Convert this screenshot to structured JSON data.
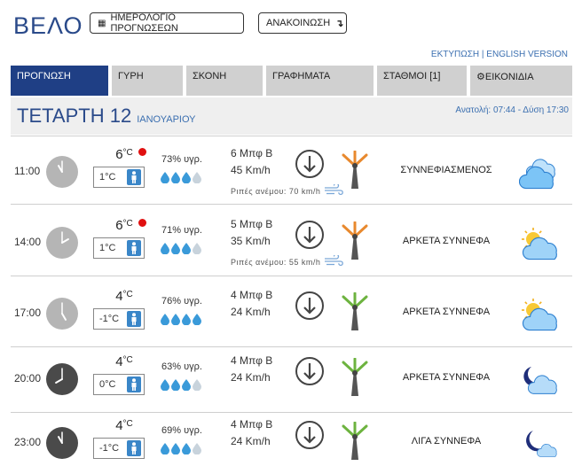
{
  "header": {
    "title": "ΒΕΛΟ",
    "calendar_button": "ΗΜΕΡΟΛΟΓΙΟ ΠΡΟΓΝΩΣΕΩΝ",
    "announcement_button": "ΑΝΑΚΟΙΝΩΣΗ",
    "print_link": "ΕΚΤΥΠΩΣΗ",
    "separator": " | ",
    "english_link": "ENGLISH VERSION"
  },
  "tabs": [
    {
      "label": "ΠΡΟΓΝΩΣΗ"
    },
    {
      "label": "ΓΥΡΗ"
    },
    {
      "label": "ΣΚΟΝΗ"
    },
    {
      "label": "ΓΡΑΦΗΜΑΤΑ"
    },
    {
      "label": "ΣΤΑΘΜΟΙ  [1]"
    },
    {
      "label": "ΕΙΚΟΝΙΔΙΑ"
    }
  ],
  "date": {
    "day": "ΤΕΤΑΡΤΗ 12",
    "month": "ΙΑΝΟΥΑΡΙΟΥ",
    "sun": "Ανατολή: 07:44 - Δύση 17:30"
  },
  "forecast": [
    {
      "time": "11:00",
      "clock": "light",
      "temp": "6",
      "unit": "°C",
      "warning": true,
      "feels": "1°C",
      "humidity": "73% υγρ.",
      "drops_full": 3,
      "wind_bf": "6 Μπφ Β",
      "wind_kmh": "45 Km/h",
      "gust": "Ριπές ανέμου: 70 km/h",
      "turbine": "orange",
      "description": "ΣΥΝΝΕΦΙΑΣΜΕΝΟΣ",
      "icon": "cloudy-icon"
    },
    {
      "time": "14:00",
      "clock": "light",
      "temp": "6",
      "unit": "°C",
      "warning": true,
      "feels": "1°C",
      "humidity": "71% υγρ.",
      "drops_full": 3,
      "wind_bf": "5 Μπφ Β",
      "wind_kmh": "35 Km/h",
      "gust": "Ριπές ανέμου: 55 km/h",
      "turbine": "orange",
      "description": "ΑΡΚΕΤΑ ΣΥΝΝΕΦΑ",
      "icon": "partly-cloudy-day-icon"
    },
    {
      "time": "17:00",
      "clock": "light",
      "temp": "4",
      "unit": "°C",
      "warning": false,
      "feels": "-1°C",
      "humidity": "76% υγρ.",
      "drops_full": 4,
      "wind_bf": "4 Μπφ Β",
      "wind_kmh": "24 Km/h",
      "gust": "",
      "turbine": "green",
      "description": "ΑΡΚΕΤΑ ΣΥΝΝΕΦΑ",
      "icon": "partly-cloudy-day-icon"
    },
    {
      "time": "20:00",
      "clock": "dark",
      "temp": "4",
      "unit": "°C",
      "warning": false,
      "feels": "0°C",
      "humidity": "63% υγρ.",
      "drops_full": 3,
      "wind_bf": "4 Μπφ Β",
      "wind_kmh": "24 Km/h",
      "gust": "",
      "turbine": "green",
      "description": "ΑΡΚΕΤΑ ΣΥΝΝΕΦΑ",
      "icon": "partly-cloudy-night-icon"
    },
    {
      "time": "23:00",
      "clock": "dark",
      "temp": "4",
      "unit": "°C",
      "warning": false,
      "feels": "-1°C",
      "humidity": "69% υγρ.",
      "drops_full": 3,
      "wind_bf": "4 Μπφ Β",
      "wind_kmh": "24 Km/h",
      "gust": "",
      "turbine": "green",
      "description": "ΛΙΓΑ ΣΥΝΝΕΦΑ",
      "icon": "few-clouds-night-icon"
    }
  ],
  "colors": {
    "primary": "#1f3f85",
    "link": "#3b6fb0",
    "tab_bg": "#d0d0d0",
    "warning": "#e01010",
    "drop": "#3a9ad9",
    "turbine_orange": "#e8892e",
    "turbine_green": "#6db33f"
  }
}
